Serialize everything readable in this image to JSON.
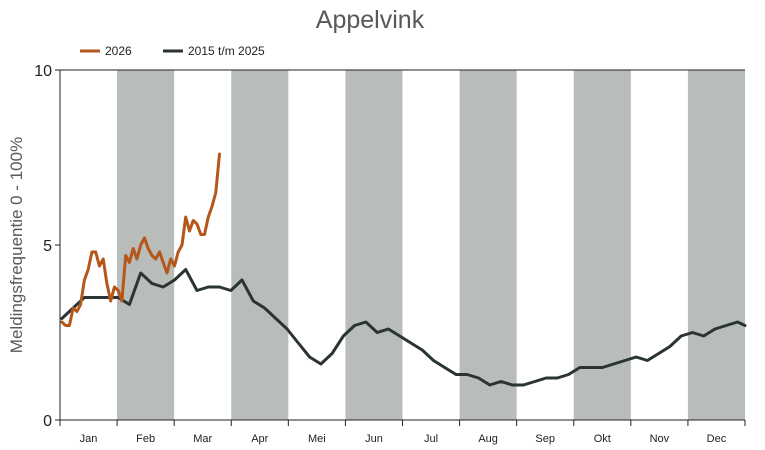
{
  "chart_data": {
    "type": "line",
    "title": "Appelvink",
    "ylabel": "Meldingsfrequentie 0 - 100%",
    "xlabel": "",
    "ylim": [
      0,
      10
    ],
    "yticks": [
      "0",
      "5",
      "10"
    ],
    "months": [
      "Jan",
      "Feb",
      "Mar",
      "Apr",
      "Mei",
      "Jun",
      "Jul",
      "Aug",
      "Sep",
      "Okt",
      "Nov",
      "Dec"
    ],
    "shaded_months": [
      "Feb",
      "Apr",
      "Jun",
      "Aug",
      "Okt",
      "Dec"
    ],
    "grid": false,
    "legend_position": "top-left",
    "series": [
      {
        "name": "2026",
        "color": "#b5561b",
        "x": [
          1,
          3,
          5,
          7,
          9,
          11,
          13,
          15,
          17,
          19,
          21,
          23,
          25,
          27,
          29,
          31,
          33,
          35,
          37,
          39,
          41,
          43,
          45,
          47,
          49,
          51,
          53,
          55,
          57,
          59,
          61,
          63,
          65,
          67,
          69,
          71,
          73,
          75,
          77,
          79,
          81,
          83,
          85,
          87,
          89,
          91,
          93,
          95,
          97,
          99,
          101,
          103,
          105,
          107,
          109,
          111,
          113,
          115,
          117,
          119,
          121,
          123,
          125,
          127,
          129,
          131,
          133,
          135
        ],
        "values": [
          2.8,
          2.7,
          2.7,
          3.2,
          3.1,
          3.3,
          4.0,
          4.3,
          4.8,
          4.8,
          4.4,
          4.6,
          3.9,
          3.4,
          3.8,
          3.7,
          3.4,
          4.7,
          4.5,
          4.9,
          4.6,
          5.0,
          5.2,
          4.9,
          4.7,
          4.6,
          4.8,
          4.5,
          4.2,
          4.6,
          4.4,
          4.8,
          5.0,
          5.8,
          5.4,
          5.7,
          5.6,
          5.3,
          5.3,
          5.8,
          6.1,
          6.5,
          7.6,
          null,
          null,
          null,
          null,
          null,
          null,
          null,
          null,
          null,
          null,
          null,
          null,
          null,
          null,
          null,
          null,
          null,
          null,
          null,
          null,
          null,
          null,
          null,
          null,
          null
        ]
      },
      {
        "name": "2015 t/m 2025",
        "color": "#2a3533",
        "x": [
          1,
          7,
          13,
          19,
          25,
          31,
          37,
          43,
          49,
          55,
          61,
          67,
          73,
          79,
          85,
          91,
          97,
          103,
          109,
          115,
          121,
          127,
          133,
          139,
          145,
          151,
          157,
          163,
          169,
          175,
          181,
          187,
          193,
          199,
          205,
          211,
          217,
          223,
          229,
          235,
          241,
          247,
          253,
          259,
          265,
          271,
          277,
          283,
          289,
          295,
          301,
          307,
          313,
          319,
          325,
          331,
          337,
          343,
          349,
          355,
          361,
          365
        ],
        "values": [
          2.9,
          3.2,
          3.5,
          3.5,
          3.5,
          3.5,
          3.3,
          4.2,
          3.9,
          3.8,
          4.0,
          4.3,
          3.7,
          3.8,
          3.8,
          3.7,
          4.0,
          3.4,
          3.2,
          2.9,
          2.6,
          2.2,
          1.8,
          1.6,
          1.9,
          2.4,
          2.7,
          2.8,
          2.5,
          2.6,
          2.4,
          2.2,
          2.0,
          1.7,
          1.5,
          1.3,
          1.3,
          1.2,
          1.0,
          1.1,
          1.0,
          1.0,
          1.1,
          1.2,
          1.2,
          1.3,
          1.5,
          1.5,
          1.5,
          1.6,
          1.7,
          1.8,
          1.7,
          1.9,
          2.1,
          2.4,
          2.5,
          2.4,
          2.6,
          2.7,
          2.8,
          2.7
        ]
      }
    ]
  }
}
